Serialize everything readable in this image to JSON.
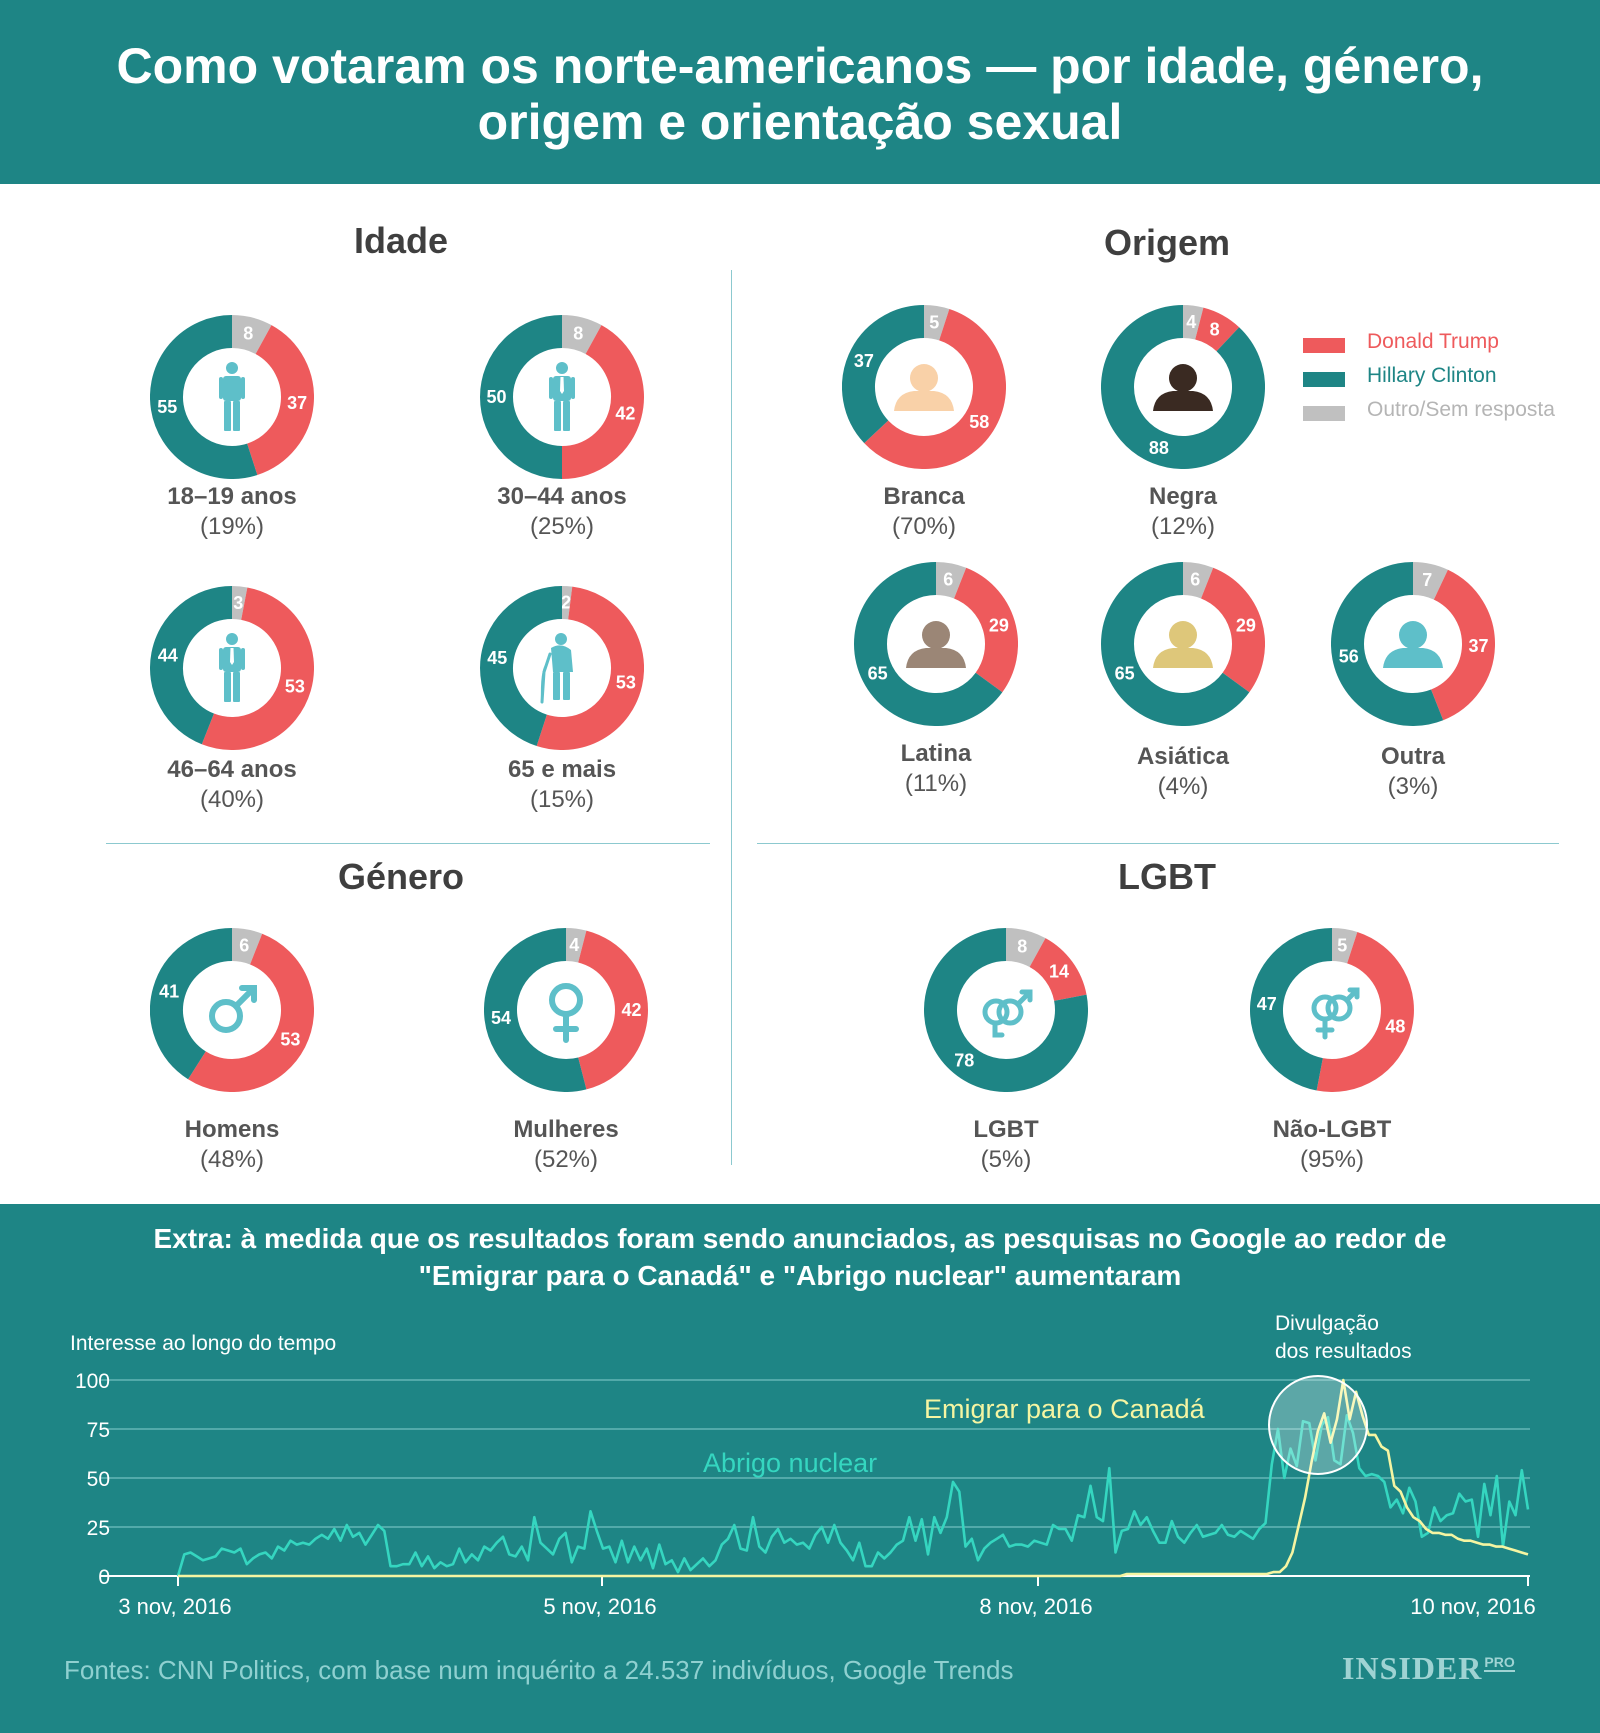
{
  "header": {
    "title": "Como votaram os norte-americanos — por idade, género, origem e orientação sexual"
  },
  "colors": {
    "trump": "#ee5a5c",
    "clinton": "#1e8585",
    "other": "#c0c0c0",
    "icon": "#5ebfc9",
    "header": "#1e8585",
    "nuclear": "#35d6c0",
    "canada": "#f5f5a2"
  },
  "legend": [
    {
      "label": "Donald Trump",
      "color": "#ee5a5c",
      "text_color": "#ee5a5c"
    },
    {
      "label": "Hillary Clinton",
      "color": "#1e8585",
      "text_color": "#1e8585"
    },
    {
      "label": "Outro/Sem resposta",
      "color": "#c0c0c0",
      "text_color": "#b5b5b5"
    }
  ],
  "sections": {
    "age": "Idade",
    "origin": "Origem",
    "gender": "Género",
    "lgbt": "LGBT"
  },
  "chart_data": [
    {
      "type": "pie",
      "title": "Como votaram os norte-americanos",
      "series_names": [
        "Donald Trump",
        "Hillary Clinton",
        "Outro/Sem resposta"
      ],
      "groups": [
        {
          "id": "a1",
          "section": "Idade",
          "name": "18–19 anos",
          "share": "(19%)",
          "icon": "young-person-icon",
          "trump": 37,
          "clinton": 55,
          "other": 8
        },
        {
          "id": "a2",
          "section": "Idade",
          "name": "30–44 anos",
          "share": "(25%)",
          "icon": "adult-person-icon",
          "trump": 42,
          "clinton": 50,
          "other": 8
        },
        {
          "id": "a3",
          "section": "Idade",
          "name": "46–64 anos",
          "share": "(40%)",
          "icon": "middle-aged-person-icon",
          "trump": 53,
          "clinton": 44,
          "other": 3
        },
        {
          "id": "a4",
          "section": "Idade",
          "name": "65 e mais",
          "share": "(15%)",
          "icon": "elderly-person-cane-icon",
          "trump": 53,
          "clinton": 45,
          "other": 2
        },
        {
          "id": "o1",
          "section": "Origem",
          "name": "Branca",
          "share": "(70%)",
          "icon": "person-bust-icon",
          "icon_color": "#f9d1a8",
          "trump": 58,
          "clinton": 37,
          "other": 5
        },
        {
          "id": "o2",
          "section": "Origem",
          "name": "Negra",
          "share": "(12%)",
          "icon": "person-bust-icon",
          "icon_color": "#3a2a22",
          "trump": 8,
          "clinton": 88,
          "other": 4
        },
        {
          "id": "o3",
          "section": "Origem",
          "name": "Latina",
          "share": "(11%)",
          "icon": "person-bust-icon",
          "icon_color": "#9b8676",
          "trump": 29,
          "clinton": 65,
          "other": 6
        },
        {
          "id": "o4",
          "section": "Origem",
          "name": "Asiática",
          "share": "(4%)",
          "icon": "person-bust-icon",
          "icon_color": "#dec77a",
          "trump": 29,
          "clinton": 65,
          "other": 6
        },
        {
          "id": "o5",
          "section": "Origem",
          "name": "Outra",
          "share": "(3%)",
          "icon": "person-bust-icon",
          "icon_color": "#5ebfc9",
          "trump": 37,
          "clinton": 56,
          "other": 7
        },
        {
          "id": "g1",
          "section": "Género",
          "name": "Homens",
          "share": "(48%)",
          "icon": "male-symbol-icon",
          "trump": 53,
          "clinton": 41,
          "other": 6
        },
        {
          "id": "g2",
          "section": "Género",
          "name": "Mulheres",
          "share": "(52%)",
          "icon": "female-symbol-icon",
          "trump": 42,
          "clinton": 54,
          "other": 4
        },
        {
          "id": "l1",
          "section": "LGBT",
          "name": "LGBT",
          "share": "(5%)",
          "icon": "two-male-symbols-icon",
          "trump": 14,
          "clinton": 78,
          "other": 8
        },
        {
          "id": "l2",
          "section": "LGBT",
          "name": "Não-LGBT",
          "share": "(95%)",
          "icon": "male-female-symbols-icon",
          "trump": 48,
          "clinton": 47,
          "other": 5
        }
      ]
    },
    {
      "type": "line",
      "title": "Extra: à medida que os resultados foram sendo anunciados, as pesquisas no Google ao redor de \"Emigrar para o Canadá\" e \"Abrigo nuclear\" aumentaram",
      "ylabel": "Interesse ao longo do tempo",
      "ylim": [
        0,
        100
      ],
      "yticks": [
        "100",
        "75",
        "50",
        "25",
        "0"
      ],
      "xticks": [
        "3 nov, 2016",
        "5 nov, 2016",
        "8 nov, 2016",
        "10 nov, 2016"
      ],
      "annotation": "Divulgação dos resultados",
      "series": [
        {
          "name": "Abrigo nuclear",
          "values": [
            0,
            11,
            12,
            10,
            8,
            9,
            10,
            14,
            13,
            12,
            14,
            6,
            9,
            11,
            12,
            9,
            15,
            13,
            18,
            16,
            17,
            16,
            19,
            21,
            19,
            24,
            18,
            26,
            20,
            22,
            16,
            21,
            26,
            23,
            5,
            5,
            6,
            6,
            12,
            5,
            10,
            4,
            7,
            5,
            6,
            14,
            7,
            11,
            8,
            15,
            13,
            17,
            20,
            11,
            10,
            15,
            8,
            30,
            17,
            14,
            11,
            19,
            22,
            7,
            15,
            14,
            33,
            23,
            14,
            15,
            7,
            18,
            7,
            15,
            8,
            14,
            4,
            16,
            6,
            8,
            2,
            9,
            3,
            6,
            9,
            5,
            8,
            16,
            19,
            26,
            14,
            13,
            30,
            15,
            12,
            20,
            24,
            17,
            19,
            16,
            17,
            14,
            21,
            25,
            17,
            26,
            17,
            13,
            8,
            17,
            5,
            5,
            12,
            9,
            12,
            16,
            18,
            30,
            18,
            29,
            11,
            30,
            22,
            30,
            48,
            43,
            15,
            19,
            8,
            14,
            17,
            19,
            21,
            15,
            16,
            16,
            15,
            18,
            17,
            16,
            26,
            24,
            24,
            18,
            31,
            30,
            46,
            30,
            28,
            55,
            12,
            23,
            24,
            33,
            26,
            30,
            23,
            17,
            17,
            28,
            20,
            17,
            22,
            26,
            20,
            21,
            22,
            26,
            21,
            20,
            23,
            21,
            19,
            24,
            27,
            57,
            75,
            50,
            65,
            56,
            79,
            78,
            59,
            77,
            81,
            59,
            57,
            82,
            73,
            55,
            51,
            52,
            51,
            48,
            35,
            39,
            32,
            45,
            38,
            20,
            22,
            35,
            28,
            31,
            32,
            42,
            38,
            39,
            20,
            47,
            31,
            51,
            15,
            38,
            31,
            54,
            34
          ]
        },
        {
          "name": "Emigrar para o Canadá",
          "values": [
            0,
            0,
            0,
            0,
            0,
            0,
            0,
            0,
            0,
            0,
            0,
            0,
            0,
            0,
            0,
            0,
            0,
            0,
            0,
            0,
            0,
            0,
            0,
            0,
            0,
            0,
            0,
            0,
            0,
            0,
            0,
            0,
            0,
            0,
            0,
            0,
            0,
            0,
            0,
            0,
            0,
            0,
            0,
            0,
            0,
            0,
            0,
            0,
            0,
            0,
            0,
            0,
            0,
            0,
            0,
            0,
            0,
            0,
            0,
            0,
            0,
            0,
            0,
            0,
            0,
            0,
            0,
            0,
            0,
            0,
            0,
            0,
            0,
            0,
            0,
            0,
            0,
            0,
            0,
            0,
            0,
            0,
            0,
            0,
            0,
            0,
            0,
            0,
            0,
            0,
            0,
            0,
            0,
            0,
            0,
            0,
            0,
            0,
            0,
            0,
            0,
            0,
            0,
            0,
            0,
            0,
            0,
            0,
            0,
            0,
            0,
            0,
            0,
            0,
            0,
            0,
            0,
            0,
            0,
            0,
            0,
            0,
            0,
            0,
            0,
            0,
            0,
            0,
            0,
            0,
            0,
            0,
            0,
            0,
            0,
            0,
            0,
            0,
            0,
            0,
            0,
            0,
            0,
            0,
            0,
            0,
            0,
            0,
            0,
            1,
            1,
            1,
            1,
            1,
            1,
            1,
            1,
            1,
            1,
            1,
            1,
            1,
            1,
            1,
            1,
            1,
            1,
            1,
            1,
            1,
            1,
            1,
            2,
            2,
            5,
            12,
            26,
            40,
            58,
            74,
            83,
            68,
            80,
            100,
            80,
            94,
            82,
            72,
            72,
            66,
            64,
            46,
            43,
            35,
            30,
            28,
            24,
            22,
            22,
            21,
            21,
            19,
            18,
            18,
            17,
            16,
            16,
            15,
            15,
            14,
            13,
            12,
            11
          ]
        }
      ]
    }
  ],
  "labels": {
    "nuclear": "Abrigo nuclear",
    "canada": "Emigrar para o Canadá"
  },
  "footer": {
    "sources": "Fontes: CNN Politics, com base num inquérito a 24.537 indivíduos, Google Trends",
    "logo": "INSIDER",
    "logo_pro": "PRO"
  }
}
